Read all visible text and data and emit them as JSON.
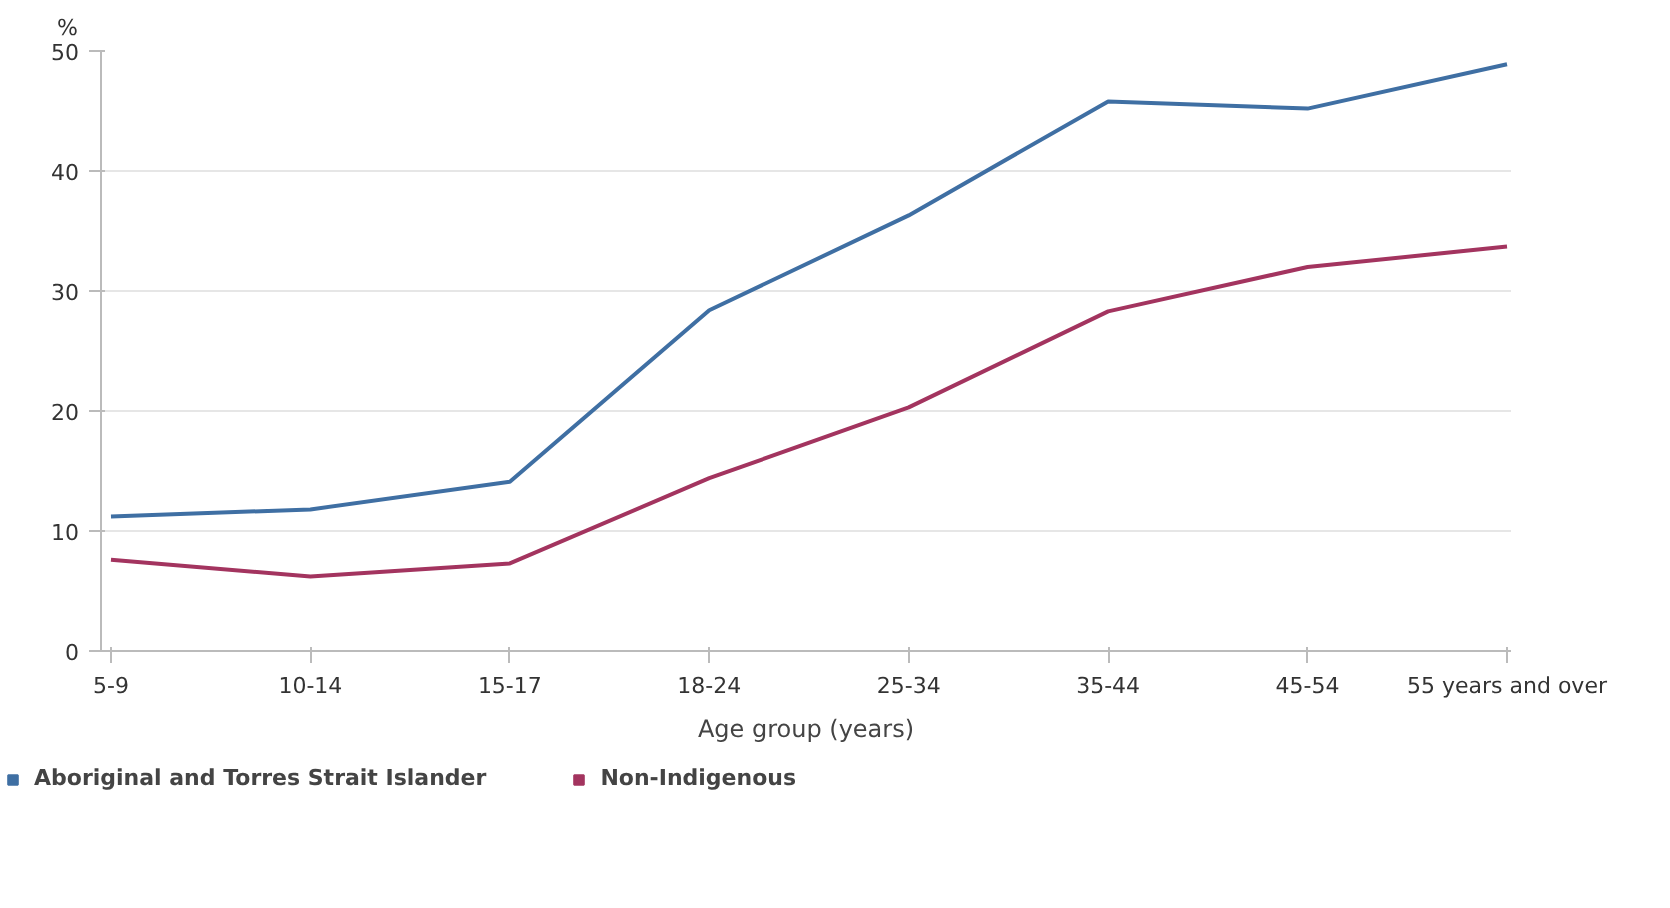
{
  "chart_data": {
    "type": "line",
    "ylabel": "%",
    "xlabel": "Age group (years)",
    "categories": [
      "5-9",
      "10-14",
      "15-17",
      "18-24",
      "25-34",
      "35-44",
      "45-54",
      "55 years and over"
    ],
    "series": [
      {
        "name": "Aboriginal and Torres Strait Islander",
        "color": "#3f6fa3",
        "values": [
          11.2,
          11.8,
          14.1,
          28.4,
          36.3,
          45.8,
          45.2,
          48.9
        ]
      },
      {
        "name": "Non-Indigenous",
        "color": "#a3345f",
        "values": [
          7.6,
          6.2,
          7.3,
          14.4,
          20.3,
          28.3,
          32.0,
          33.7
        ]
      }
    ],
    "ylim": [
      0,
      50
    ],
    "yticks": [
      0,
      10,
      20,
      30,
      40,
      50
    ],
    "grid": "y",
    "legend": "bottom",
    "marker": "none",
    "line_style": "solid"
  }
}
